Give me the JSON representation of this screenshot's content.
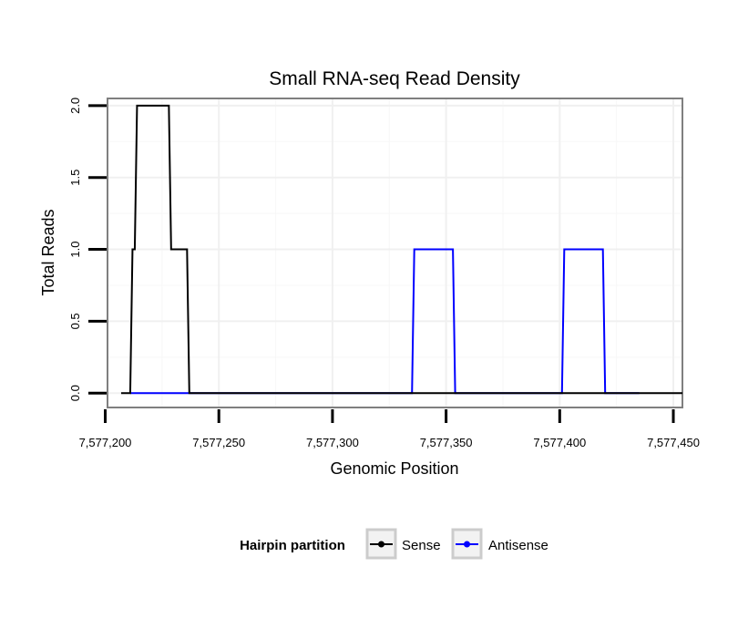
{
  "chart_data": {
    "type": "line",
    "title": "Small RNA-seq Read Density",
    "xlabel": "Genomic Position",
    "ylabel": "Total Reads",
    "xlim": [
      7577201,
      7577454
    ],
    "ylim": [
      -0.1,
      2.05
    ],
    "x_ticks": [
      7577200,
      7577250,
      7577300,
      7577350,
      7577400,
      7577450
    ],
    "x_tick_labels": [
      "7,577,200",
      "7,577,250",
      "7,577,300",
      "7,577,350",
      "7,577,400",
      "7,577,450"
    ],
    "y_ticks": [
      0.0,
      0.5,
      1.0,
      1.5,
      2.0
    ],
    "y_tick_labels": [
      "0.0",
      "0.5",
      "1.0",
      "1.5",
      "2.0"
    ],
    "grid": true,
    "legend": {
      "title": "Hairpin partition",
      "position": "bottom"
    },
    "series": [
      {
        "name": "Sense",
        "color": "#000000",
        "x": [
          7577207,
          7577211,
          7577212,
          7577213,
          7577214,
          7577228,
          7577229,
          7577236,
          7577237,
          7577454
        ],
        "y": [
          0,
          0,
          1,
          1,
          2,
          2,
          1,
          1,
          0,
          0
        ]
      },
      {
        "name": "Antisense",
        "color": "#0000ff",
        "x": [
          7577211,
          7577235,
          7577335,
          7577336,
          7577353,
          7577354,
          7577401,
          7577402,
          7577419,
          7577420,
          7577435
        ],
        "y": [
          0,
          0,
          0,
          1,
          1,
          0,
          0,
          1,
          1,
          0,
          0
        ]
      }
    ]
  }
}
